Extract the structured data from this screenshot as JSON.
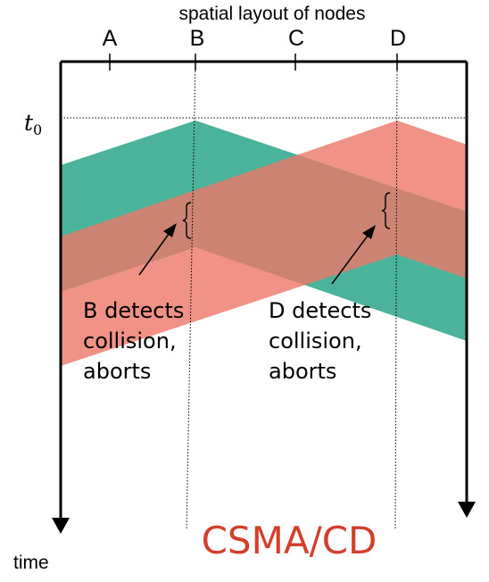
{
  "header": {
    "title": "spatial layout of nodes"
  },
  "nodes": [
    {
      "name": "A"
    },
    {
      "name": "B"
    },
    {
      "name": "C"
    },
    {
      "name": "D"
    }
  ],
  "start_time_label": {
    "var": "t",
    "sub": "0"
  },
  "time_axis_label": "time",
  "annotations": {
    "b": [
      "B detects",
      "collision,",
      "aborts"
    ],
    "d": [
      "D detects",
      "collision,",
      "aborts"
    ]
  },
  "caption": "CSMA/CD",
  "colors": {
    "b_transmission": "#2ba58b",
    "d_transmission": "#ec7766",
    "overlap": "#7a6a52",
    "caption": "#d33f2a"
  }
}
